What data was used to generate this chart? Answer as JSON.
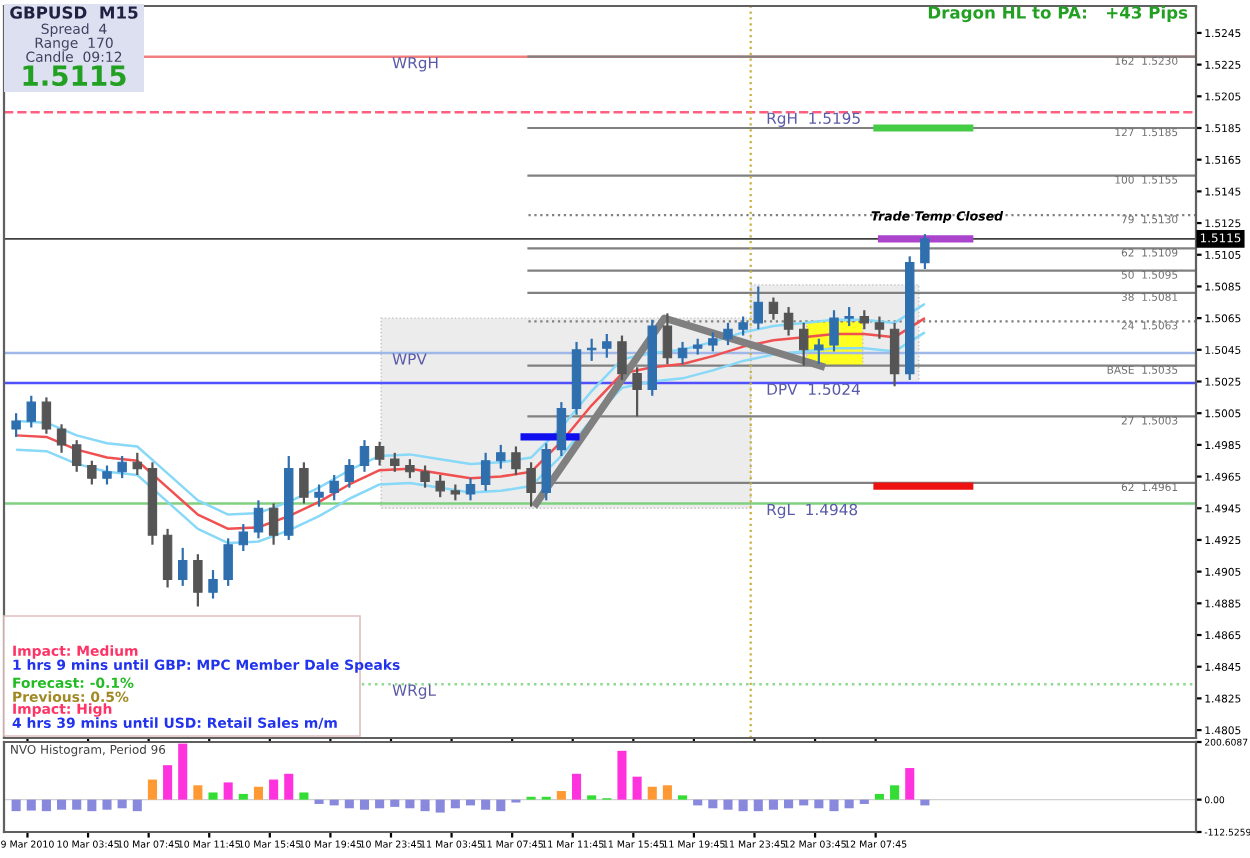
{
  "chart_data": [
    {
      "type": "candlestick",
      "title": "GBPUSD  M15",
      "annotations": [
        "Spread  4",
        "Range  170",
        "Candle  09:12",
        "1.5115",
        "Dragon HL to PA:   +43 Pips",
        "Impact: Medium",
        "1 hrs 9 mins until GBP: MPC Member Dale Speaks",
        "Forecast: -0.1%",
        "Previous: 0.5%",
        "Impact: High",
        "4 hrs 39 mins until USD: Retail Sales m/m",
        {
          "text": "Trade Temp Closed",
          "x": "2010-03-12T11:48",
          "y": 1.5125
        }
      ],
      "x": [
        "2010-03-09T23:00",
        "2010-03-10T00:00",
        "2010-03-10T01:00",
        "2010-03-10T02:00",
        "2010-03-10T03:00",
        "2010-03-10T04:00",
        "2010-03-10T05:00",
        "2010-03-10T06:00",
        "2010-03-10T07:00",
        "2010-03-10T08:00",
        "2010-03-10T09:00",
        "2010-03-10T10:00",
        "2010-03-10T11:00",
        "2010-03-10T12:00",
        "2010-03-10T13:00",
        "2010-03-10T14:00",
        "2010-03-10T15:00",
        "2010-03-10T16:00",
        "2010-03-10T17:00",
        "2010-03-10T18:00",
        "2010-03-10T19:00",
        "2010-03-10T20:00",
        "2010-03-10T21:00",
        "2010-03-10T22:00",
        "2010-03-10T23:00",
        "2010-03-11T00:00",
        "2010-03-11T01:00",
        "2010-03-11T02:00",
        "2010-03-11T03:00",
        "2010-03-11T04:00",
        "2010-03-11T05:00",
        "2010-03-11T06:00",
        "2010-03-11T07:00",
        "2010-03-11T08:00",
        "2010-03-11T09:00",
        "2010-03-11T10:00",
        "2010-03-11T11:00",
        "2010-03-11T12:00",
        "2010-03-11T13:00",
        "2010-03-11T14:00",
        "2010-03-11T15:00",
        "2010-03-11T16:00",
        "2010-03-11T17:00",
        "2010-03-11T18:00",
        "2010-03-11T19:00",
        "2010-03-11T20:00",
        "2010-03-11T21:00",
        "2010-03-11T22:00",
        "2010-03-11T23:00",
        "2010-03-12T00:00",
        "2010-03-12T01:00",
        "2010-03-12T02:00",
        "2010-03-12T03:00",
        "2010-03-12T04:00",
        "2010-03-12T05:00",
        "2010-03-12T06:00",
        "2010-03-12T07:00",
        "2010-03-12T08:00",
        "2010-03-12T09:00",
        "2010-03-12T10:00",
        "2010-03-12T11:00"
      ],
      "ohlc": [
        [
          1.4995,
          1.5005,
          1.499,
          1.5
        ],
        [
          1.5,
          1.5016,
          1.4996,
          1.5012
        ],
        [
          1.5012,
          1.5015,
          1.4992,
          1.4995
        ],
        [
          1.4995,
          1.4998,
          1.498,
          1.4985
        ],
        [
          1.4985,
          1.4988,
          1.4968,
          1.4972
        ],
        [
          1.4972,
          1.4975,
          1.496,
          1.4964
        ],
        [
          1.4964,
          1.4972,
          1.496,
          1.4968
        ],
        [
          1.4968,
          1.4978,
          1.4964,
          1.4974
        ],
        [
          1.4974,
          1.498,
          1.4966,
          1.497
        ],
        [
          1.497,
          1.4974,
          1.4922,
          1.4928
        ],
        [
          1.4928,
          1.4932,
          1.4895,
          1.49
        ],
        [
          1.49,
          1.492,
          1.4896,
          1.4912
        ],
        [
          1.4912,
          1.4916,
          1.4883,
          1.4892
        ],
        [
          1.4892,
          1.4906,
          1.4888,
          1.49
        ],
        [
          1.49,
          1.4926,
          1.4896,
          1.4922
        ],
        [
          1.4922,
          1.4935,
          1.4918,
          1.493
        ],
        [
          1.493,
          1.495,
          1.4926,
          1.4945
        ],
        [
          1.4945,
          1.4948,
          1.4922,
          1.4928
        ],
        [
          1.4928,
          1.4978,
          1.4925,
          1.497
        ],
        [
          1.497,
          1.4974,
          1.4948,
          1.4952
        ],
        [
          1.4952,
          1.496,
          1.4946,
          1.4955
        ],
        [
          1.4955,
          1.4966,
          1.495,
          1.4962
        ],
        [
          1.4962,
          1.4976,
          1.4958,
          1.4972
        ],
        [
          1.4972,
          1.4988,
          1.4968,
          1.4984
        ],
        [
          1.4984,
          1.4987,
          1.4972,
          1.4976
        ],
        [
          1.4976,
          1.498,
          1.4968,
          1.4972
        ],
        [
          1.4972,
          1.4976,
          1.4964,
          1.4968
        ],
        [
          1.4968,
          1.4972,
          1.4958,
          1.4962
        ],
        [
          1.4962,
          1.4966,
          1.4952,
          1.4956
        ],
        [
          1.4956,
          1.496,
          1.495,
          1.4954
        ],
        [
          1.4954,
          1.4964,
          1.495,
          1.496
        ],
        [
          1.496,
          1.498,
          1.4956,
          1.4975
        ],
        [
          1.4975,
          1.4985,
          1.497,
          1.498
        ],
        [
          1.498,
          1.4984,
          1.4966,
          1.497
        ],
        [
          1.497,
          1.4974,
          1.4946,
          1.4955
        ],
        [
          1.4955,
          1.4986,
          1.495,
          1.4982
        ],
        [
          1.4982,
          1.5012,
          1.4978,
          1.5008
        ],
        [
          1.5008,
          1.505,
          1.5004,
          1.5045
        ],
        [
          1.5045,
          1.5052,
          1.5038,
          1.5046
        ],
        [
          1.5046,
          1.5055,
          1.504,
          1.505
        ],
        [
          1.505,
          1.5054,
          1.5026,
          1.503
        ],
        [
          1.503,
          1.5034,
          1.5003,
          1.502
        ],
        [
          1.502,
          1.5064,
          1.5016,
          1.506
        ],
        [
          1.506,
          1.5068,
          1.5036,
          1.504
        ],
        [
          1.504,
          1.505,
          1.5036,
          1.5046
        ],
        [
          1.5046,
          1.5052,
          1.5042,
          1.5048
        ],
        [
          1.5048,
          1.5056,
          1.5044,
          1.5052
        ],
        [
          1.5052,
          1.5062,
          1.5048,
          1.5058
        ],
        [
          1.5058,
          1.5066,
          1.5054,
          1.5062
        ],
        [
          1.5062,
          1.5085,
          1.5058,
          1.5075
        ],
        [
          1.5075,
          1.5078,
          1.5064,
          1.5068
        ],
        [
          1.5068,
          1.5072,
          1.5054,
          1.5058
        ],
        [
          1.5058,
          1.5062,
          1.5035,
          1.5045
        ],
        [
          1.5045,
          1.5052,
          1.5036,
          1.5048
        ],
        [
          1.5048,
          1.507,
          1.5044,
          1.5065
        ],
        [
          1.5065,
          1.5072,
          1.506,
          1.5066
        ],
        [
          1.5066,
          1.507,
          1.5058,
          1.5062
        ],
        [
          1.5062,
          1.5066,
          1.5052,
          1.5058
        ],
        [
          1.5058,
          1.5062,
          1.5022,
          1.503
        ],
        [
          1.503,
          1.5104,
          1.5026,
          1.51
        ],
        [
          1.51,
          1.5118,
          1.5096,
          1.5115
        ]
      ],
      "colors": [
        "#2f6fae",
        "#2f6fae",
        "#555555",
        "#555555",
        "#555555",
        "#555555",
        "#2f6fae",
        "#2f6fae",
        "#555555",
        "#555555",
        "#555555",
        "#2f6fae",
        "#555555",
        "#2f6fae",
        "#2f6fae",
        "#2f6fae",
        "#2f6fae",
        "#555555",
        "#2f6fae",
        "#555555",
        "#2f6fae",
        "#2f6fae",
        "#2f6fae",
        "#2f6fae",
        "#555555",
        "#555555",
        "#555555",
        "#555555",
        "#555555",
        "#555555",
        "#2f6fae",
        "#2f6fae",
        "#2f6fae",
        "#555555",
        "#555555",
        "#2f6fae",
        "#2f6fae",
        "#2f6fae",
        "#2f6fae",
        "#2f6fae",
        "#555555",
        "#555555",
        "#2f6fae",
        "#555555",
        "#2f6fae",
        "#2f6fae",
        "#2f6fae",
        "#2f6fae",
        "#2f6fae",
        "#2f6fae",
        "#555555",
        "#555555",
        "#555555",
        "#2f6fae",
        "#2f6fae",
        "#2f6fae",
        "#555555",
        "#555555",
        "#555555",
        "#2f6fae",
        "#2f6fae"
      ],
      "series": [
        {
          "type": "area",
          "color": "#ececec",
          "x": [
            "2010-03-10T23:06",
            "2010-03-11T23:30",
            "2010-03-11T23:30",
            "2010-03-10T23:06"
          ],
          "values": [
            1.5065,
            1.5065,
            1.4945,
            1.4945
          ]
        },
        {
          "type": "area",
          "color": "#ececec",
          "x": [
            "2010-03-11T23:30",
            "2010-03-12T10:36",
            "2010-03-12T10:36",
            "2010-03-11T23:30"
          ],
          "values": [
            1.5086,
            1.5086,
            1.5024,
            1.5024
          ]
        },
        {
          "type": "area",
          "color": "#ffff22",
          "x": [
            "2010-03-12T03:12",
            "2010-03-12T06:54",
            "2010-03-12T06:54",
            "2010-03-12T03:12"
          ],
          "values": [
            1.5063,
            1.5063,
            1.5035,
            1.5035
          ]
        },
        {
          "type": "line",
          "color": "#88d8f8",
          "x": [
            "2010-03-09T23:00",
            "2010-03-10T01:00",
            "2010-03-10T03:00",
            "2010-03-10T05:00",
            "2010-03-10T07:00",
            "2010-03-10T09:00",
            "2010-03-10T11:00",
            "2010-03-10T13:00",
            "2010-03-10T15:00",
            "2010-03-10T17:00",
            "2010-03-10T19:00",
            "2010-03-10T21:00",
            "2010-03-10T23:00",
            "2010-03-11T01:00",
            "2010-03-11T03:00",
            "2010-03-11T05:00",
            "2010-03-11T07:00",
            "2010-03-11T09:00",
            "2010-03-11T11:00",
            "2010-03-11T13:00",
            "2010-03-11T15:00",
            "2010-03-11T17:00",
            "2010-03-11T19:00",
            "2010-03-11T21:00",
            "2010-03-11T23:00",
            "2010-03-12T01:00",
            "2010-03-12T03:00",
            "2010-03-12T05:00",
            "2010-03-12T07:00",
            "2010-03-12T09:00",
            "2010-03-12T11:00"
          ],
          "values": [
            1.5,
            1.4999,
            1.4991,
            1.4986,
            1.4984,
            1.4967,
            1.495,
            1.4941,
            1.4942,
            1.4949,
            1.4958,
            1.4969,
            1.4978,
            1.4979,
            1.4976,
            1.4973,
            1.4974,
            1.4977,
            1.4996,
            1.5019,
            1.5039,
            1.5043,
            1.5045,
            1.505,
            1.5056,
            1.506,
            1.5062,
            1.5064,
            1.5064,
            1.5062,
            1.5074
          ]
        },
        {
          "type": "line",
          "color": "#f05050",
          "x": [
            "2010-03-09T23:00",
            "2010-03-10T01:00",
            "2010-03-10T03:00",
            "2010-03-10T05:00",
            "2010-03-10T07:00",
            "2010-03-10T09:00",
            "2010-03-10T11:00",
            "2010-03-10T13:00",
            "2010-03-10T15:00",
            "2010-03-10T17:00",
            "2010-03-10T19:00",
            "2010-03-10T21:00",
            "2010-03-10T23:00",
            "2010-03-11T01:00",
            "2010-03-11T03:00",
            "2010-03-11T05:00",
            "2010-03-11T07:00",
            "2010-03-11T09:00",
            "2010-03-11T11:00",
            "2010-03-11T13:00",
            "2010-03-11T15:00",
            "2010-03-11T17:00",
            "2010-03-11T19:00",
            "2010-03-11T21:00",
            "2010-03-11T23:00",
            "2010-03-12T01:00",
            "2010-03-12T03:00",
            "2010-03-12T05:00",
            "2010-03-12T07:00",
            "2010-03-12T09:00",
            "2010-03-12T11:00"
          ],
          "values": [
            1.4991,
            1.499,
            1.4982,
            1.4977,
            1.4975,
            1.4958,
            1.4941,
            1.4932,
            1.4933,
            1.494,
            1.4949,
            1.496,
            1.4969,
            1.497,
            1.4967,
            1.4964,
            1.4965,
            1.4968,
            1.4987,
            1.501,
            1.503,
            1.5034,
            1.5036,
            1.5041,
            1.5047,
            1.5051,
            1.5053,
            1.5055,
            1.5055,
            1.5053,
            1.5065
          ]
        },
        {
          "type": "line",
          "color": "#88d8f8",
          "x": [
            "2010-03-09T23:00",
            "2010-03-10T01:00",
            "2010-03-10T03:00",
            "2010-03-10T05:00",
            "2010-03-10T07:00",
            "2010-03-10T09:00",
            "2010-03-10T11:00",
            "2010-03-10T13:00",
            "2010-03-10T15:00",
            "2010-03-10T17:00",
            "2010-03-10T19:00",
            "2010-03-10T21:00",
            "2010-03-10T23:00",
            "2010-03-11T01:00",
            "2010-03-11T03:00",
            "2010-03-11T05:00",
            "2010-03-11T07:00",
            "2010-03-11T09:00",
            "2010-03-11T11:00",
            "2010-03-11T13:00",
            "2010-03-11T15:00",
            "2010-03-11T17:00",
            "2010-03-11T19:00",
            "2010-03-11T21:00",
            "2010-03-11T23:00",
            "2010-03-12T01:00",
            "2010-03-12T03:00",
            "2010-03-12T05:00",
            "2010-03-12T07:00",
            "2010-03-12T09:00",
            "2010-03-12T11:00"
          ],
          "values": [
            1.4982,
            1.4981,
            1.4973,
            1.4968,
            1.4966,
            1.4949,
            1.4932,
            1.4923,
            1.4924,
            1.4931,
            1.494,
            1.4951,
            1.496,
            1.4961,
            1.4958,
            1.4955,
            1.4956,
            1.4959,
            1.4978,
            1.5001,
            1.5021,
            1.5025,
            1.5027,
            1.5032,
            1.5038,
            1.5042,
            1.5044,
            1.5046,
            1.5046,
            1.5044,
            1.5056
          ]
        },
        {
          "type": "line",
          "color": "#808080",
          "x": [
            "2010-03-11T09:12",
            "2010-03-11T17:48",
            "2010-03-12T04:24"
          ],
          "values": [
            1.4946,
            1.5065,
            1.5034
          ]
        },
        {
          "type": "line",
          "color": "#1010ee",
          "x": [
            "2010-03-11T08:18",
            "2010-03-11T12:12"
          ],
          "values": [
            1.499,
            1.499
          ]
        },
        {
          "type": "line",
          "color": "#44cc44",
          "x": [
            "2010-03-12T07:36",
            "2010-03-12T14:12"
          ],
          "values": [
            1.5185,
            1.5185
          ]
        },
        {
          "type": "line",
          "color": "#aa44cc",
          "x": [
            "2010-03-12T07:54",
            "2010-03-12T14:12"
          ],
          "values": [
            1.5115,
            1.5115
          ]
        },
        {
          "type": "line",
          "color": "#ee1111",
          "x": [
            "2010-03-12T07:36",
            "2010-03-12T14:12"
          ],
          "values": [
            1.4959,
            1.4959
          ]
        }
      ],
      "ref_lines": [
        {
          "axis": "y",
          "value": 1.523,
          "label": "WRgH",
          "color": "#f08080"
        },
        {
          "axis": "y",
          "value": 1.5043,
          "label": "WPV",
          "color": "#a0b8e8"
        },
        {
          "axis": "y",
          "value": 1.4834,
          "label": "WRgL",
          "color": "#90d890",
          "line_style": "dotted"
        },
        {
          "axis": "y",
          "value": 1.5195,
          "label": "RgH  1.5195",
          "color": "#ff6080",
          "line_style": "dashed"
        },
        {
          "axis": "y",
          "value": 1.5024,
          "label": "DPV  1.5024",
          "color": "#5050ff"
        },
        {
          "axis": "y",
          "value": 1.4948,
          "label": "RgL  1.4948",
          "color": "#80d080"
        },
        {
          "axis": "y",
          "value": 1.523,
          "label": "162  1.5230",
          "color": "#808080"
        },
        {
          "axis": "y",
          "value": 1.5185,
          "label": "127  1.5185",
          "color": "#808080"
        },
        {
          "axis": "y",
          "value": 1.5155,
          "label": "100  1.5155",
          "color": "#808080"
        },
        {
          "axis": "y",
          "value": 1.513,
          "label": "79  1.5130",
          "color": "#808080",
          "line_style": "dotted"
        },
        {
          "axis": "y",
          "value": 1.5109,
          "label": "62  1.5109",
          "color": "#808080"
        },
        {
          "axis": "y",
          "value": 1.5095,
          "label": "50  1.5095",
          "color": "#808080"
        },
        {
          "axis": "y",
          "value": 1.5081,
          "label": "38  1.5081",
          "color": "#808080"
        },
        {
          "axis": "y",
          "value": 1.5063,
          "label": "24  1.5063",
          "color": "#808080",
          "line_style": "dotted"
        },
        {
          "axis": "y",
          "value": 1.5035,
          "label": "BASE  1.5035",
          "color": "#808080"
        },
        {
          "axis": "y",
          "value": 1.5003,
          "label": "27  1.5003",
          "color": "#808080"
        },
        {
          "axis": "y",
          "value": 1.4961,
          "label": "62  1.4961",
          "color": "#808080"
        },
        {
          "axis": "y",
          "value": 1.5115,
          "label": "1.5115",
          "color": "#404040"
        },
        {
          "axis": "x",
          "value": "2010-03-11T23:30",
          "color": "#c8b040",
          "line_style": "dotted"
        }
      ],
      "xlim": [
        "2010-03-09T22:12",
        "2010-03-13T04:54"
      ],
      "ylim": [
        1.48,
        1.5262
      ],
      "xticks": [
        {
          "value": "2010-03-09T23:45",
          "label": null
        },
        {
          "value": "2010-03-10T03:45",
          "label": null
        },
        {
          "value": "2010-03-10T07:45",
          "label": null
        },
        {
          "value": "2010-03-10T11:45",
          "label": null
        },
        {
          "value": "2010-03-10T15:45",
          "label": null
        },
        {
          "value": "2010-03-10T19:45",
          "label": null
        },
        {
          "value": "2010-03-10T23:45",
          "label": null
        },
        {
          "value": "2010-03-11T03:45",
          "label": null
        },
        {
          "value": "2010-03-11T07:45",
          "label": null
        },
        {
          "value": "2010-03-11T11:45",
          "label": null
        },
        {
          "value": "2010-03-11T15:45",
          "label": null
        },
        {
          "value": "2010-03-11T19:45",
          "label": null
        },
        {
          "value": "2010-03-11T23:45",
          "label": null
        },
        {
          "value": "2010-03-12T03:45",
          "label": null
        },
        {
          "value": "2010-03-12T07:45",
          "label": null
        }
      ],
      "yticks": [
        1.5245,
        1.5225,
        1.5205,
        1.5185,
        1.5165,
        1.5145,
        1.5125,
        1.5105,
        1.5085,
        1.5065,
        1.5045,
        1.5025,
        1.5005,
        1.4985,
        1.4965,
        1.4945,
        1.4925,
        1.4905,
        1.4885,
        1.4865,
        1.4845,
        1.4825,
        1.4805
      ],
      "tick_labels": "y"
    },
    {
      "type": "bar",
      "title": "NVO Histogram, Period 96",
      "x": [
        "2010-03-09T23:00",
        "2010-03-10T00:00",
        "2010-03-10T01:00",
        "2010-03-10T02:00",
        "2010-03-10T03:00",
        "2010-03-10T04:00",
        "2010-03-10T05:00",
        "2010-03-10T06:00",
        "2010-03-10T07:00",
        "2010-03-10T08:00",
        "2010-03-10T09:00",
        "2010-03-10T10:00",
        "2010-03-10T11:00",
        "2010-03-10T12:00",
        "2010-03-10T13:00",
        "2010-03-10T14:00",
        "2010-03-10T15:00",
        "2010-03-10T16:00",
        "2010-03-10T17:00",
        "2010-03-10T18:00",
        "2010-03-10T19:00",
        "2010-03-10T20:00",
        "2010-03-10T21:00",
        "2010-03-10T22:00",
        "2010-03-10T23:00",
        "2010-03-11T00:00",
        "2010-03-11T01:00",
        "2010-03-11T02:00",
        "2010-03-11T03:00",
        "2010-03-11T04:00",
        "2010-03-11T05:00",
        "2010-03-11T06:00",
        "2010-03-11T07:00",
        "2010-03-11T08:00",
        "2010-03-11T09:00",
        "2010-03-11T10:00",
        "2010-03-11T11:00",
        "2010-03-11T12:00",
        "2010-03-11T13:00",
        "2010-03-11T14:00",
        "2010-03-11T15:00",
        "2010-03-11T16:00",
        "2010-03-11T17:00",
        "2010-03-11T18:00",
        "2010-03-11T19:00",
        "2010-03-11T20:00",
        "2010-03-11T21:00",
        "2010-03-11T22:00",
        "2010-03-11T23:00",
        "2010-03-12T00:00",
        "2010-03-12T01:00",
        "2010-03-12T02:00",
        "2010-03-12T03:00",
        "2010-03-12T04:00",
        "2010-03-12T05:00",
        "2010-03-12T06:00",
        "2010-03-12T07:00",
        "2010-03-12T08:00",
        "2010-03-12T09:00",
        "2010-03-12T10:00",
        "2010-03-12T11:00"
      ],
      "values": [
        -40,
        -38,
        -40,
        -35,
        -35,
        -40,
        -35,
        -30,
        -40,
        70,
        120,
        195,
        50,
        25,
        60,
        20,
        45,
        70,
        90,
        25,
        -15,
        -20,
        -30,
        -35,
        -30,
        -25,
        -30,
        -40,
        -45,
        -30,
        -20,
        -35,
        -40,
        -10,
        10,
        10,
        30,
        90,
        15,
        5,
        170,
        80,
        45,
        50,
        15,
        -20,
        -30,
        -35,
        -40,
        -40,
        -35,
        -30,
        -20,
        -30,
        -40,
        -30,
        -15,
        20,
        50,
        110,
        -20
      ],
      "colors": [
        "#8888dd",
        "#8888dd",
        "#8888dd",
        "#8888dd",
        "#8888dd",
        "#8888dd",
        "#8888dd",
        "#8888dd",
        "#8888dd",
        "#ff9933",
        "#ff33dd",
        "#ff33dd",
        "#ff9933",
        "#33dd33",
        "#ff33dd",
        "#33dd33",
        "#ff9933",
        "#ff33dd",
        "#ff33dd",
        "#33dd33",
        "#8888dd",
        "#8888dd",
        "#8888dd",
        "#8888dd",
        "#8888dd",
        "#8888dd",
        "#8888dd",
        "#8888dd",
        "#8888dd",
        "#8888dd",
        "#8888dd",
        "#8888dd",
        "#8888dd",
        "#8888dd",
        "#33dd33",
        "#33dd33",
        "#ff9933",
        "#ff33dd",
        "#33dd33",
        "#33dd33",
        "#ff33dd",
        "#ff33dd",
        "#ff9933",
        "#ff9933",
        "#33dd33",
        "#8888dd",
        "#8888dd",
        "#8888dd",
        "#8888dd",
        "#8888dd",
        "#8888dd",
        "#8888dd",
        "#8888dd",
        "#8888dd",
        "#8888dd",
        "#8888dd",
        "#8888dd",
        "#33dd33",
        "#33dd33",
        "#ff33dd",
        "#8888dd"
      ],
      "xlim": [
        "2010-03-09T22:12",
        "2010-03-13T04:54"
      ],
      "ylim": [
        -112.5259,
        200.6087
      ],
      "xticks": [
        {
          "value": "2010-03-09T23:45",
          "label": "9 Mar 2010"
        },
        {
          "value": "2010-03-10T03:45",
          "label": "10 Mar 03:45"
        },
        {
          "value": "2010-03-10T07:45",
          "label": "10 Mar 07:45"
        },
        {
          "value": "2010-03-10T11:45",
          "label": "10 Mar 11:45"
        },
        {
          "value": "2010-03-10T15:45",
          "label": "10 Mar 15:45"
        },
        {
          "value": "2010-03-10T19:45",
          "label": "10 Mar 19:45"
        },
        {
          "value": "2010-03-10T23:45",
          "label": "10 Mar 23:45"
        },
        {
          "value": "2010-03-11T03:45",
          "label": "11 Mar 03:45"
        },
        {
          "value": "2010-03-11T07:45",
          "label": "11 Mar 07:45"
        },
        {
          "value": "2010-03-11T11:45",
          "label": "11 Mar 11:45"
        },
        {
          "value": "2010-03-11T15:45",
          "label": "11 Mar 15:45"
        },
        {
          "value": "2010-03-11T19:45",
          "label": "11 Mar 19:45"
        },
        {
          "value": "2010-03-11T23:45",
          "label": "11 Mar 23:45"
        },
        {
          "value": "2010-03-12T03:45",
          "label": "12 Mar 03:45"
        },
        {
          "value": "2010-03-12T07:45",
          "label": "12 Mar 07:45"
        }
      ],
      "yticks": [
        200.6087,
        {
          "value": 0,
          "label": "0.00"
        },
        -112.5259
      ]
    }
  ]
}
